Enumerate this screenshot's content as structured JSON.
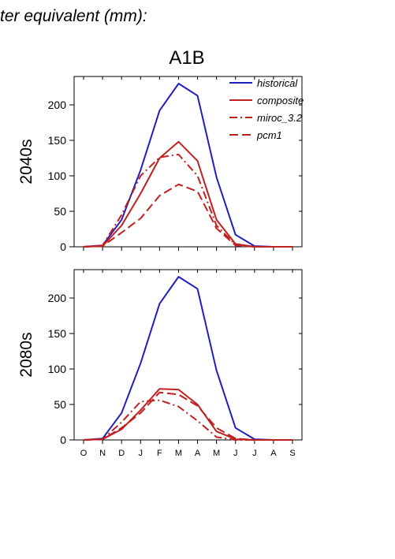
{
  "header_text": "ter equivalent (mm):",
  "chart_data": {
    "type": "line",
    "title": "A1B",
    "xlabel": "",
    "ylabel": "",
    "categories": [
      "O",
      "N",
      "D",
      "J",
      "F",
      "M",
      "A",
      "M",
      "J",
      "J",
      "A",
      "S"
    ],
    "ylim": [
      0,
      240
    ],
    "yticks": [
      0,
      50,
      100,
      150,
      200
    ],
    "grid": false,
    "legend_position": "top-right",
    "legend": [
      {
        "name": "historical",
        "color": "#1f1fbf",
        "dash": "solid"
      },
      {
        "name": "composite",
        "color": "#bf2020",
        "dash": "solid"
      },
      {
        "name": "miroc_3.2",
        "color": "#bf2020",
        "dash": "dashdot"
      },
      {
        "name": "pcm1",
        "color": "#bf2020",
        "dash": "dashed"
      }
    ],
    "panels": [
      {
        "label": "2040s",
        "series": [
          {
            "name": "historical",
            "values": [
              0,
              2,
              38,
              108,
              192,
              230,
              213,
              98,
              17,
              1,
              0,
              0
            ]
          },
          {
            "name": "composite",
            "values": [
              0,
              1,
              30,
              75,
              125,
              148,
              121,
              38,
              4,
              0,
              0,
              0
            ]
          },
          {
            "name": "miroc_3.2",
            "values": [
              0,
              2,
              45,
              100,
              126,
              130,
              100,
              30,
              3,
              0,
              0,
              0
            ]
          },
          {
            "name": "pcm1",
            "values": [
              0,
              1,
              20,
              40,
              72,
              88,
              78,
              26,
              2,
              0,
              0,
              0
            ]
          }
        ]
      },
      {
        "label": "2080s",
        "series": [
          {
            "name": "historical",
            "values": [
              0,
              2,
              38,
              108,
              192,
              230,
              213,
              98,
              17,
              1,
              0,
              0
            ]
          },
          {
            "name": "composite",
            "values": [
              0,
              1,
              15,
              42,
              72,
              71,
              50,
              12,
              1,
              0,
              0,
              0
            ]
          },
          {
            "name": "miroc_3.2",
            "values": [
              0,
              1,
              25,
              54,
              56,
              47,
              27,
              4,
              0,
              0,
              0,
              0
            ]
          },
          {
            "name": "pcm1",
            "values": [
              0,
              1,
              17,
              38,
              67,
              64,
              48,
              17,
              2,
              0,
              0,
              0
            ]
          }
        ]
      }
    ]
  }
}
